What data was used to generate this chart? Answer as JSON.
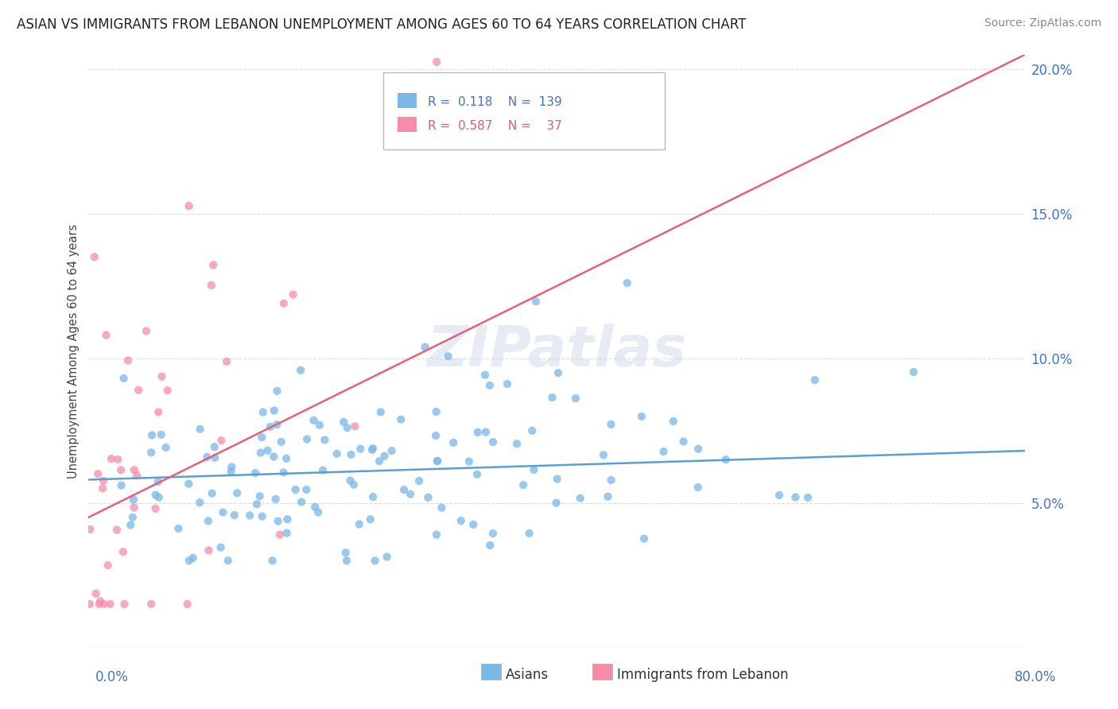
{
  "title": "ASIAN VS IMMIGRANTS FROM LEBANON UNEMPLOYMENT AMONG AGES 60 TO 64 YEARS CORRELATION CHART",
  "source": "Source: ZipAtlas.com",
  "ylabel": "Unemployment Among Ages 60 to 64 years",
  "xmin": 0.0,
  "xmax": 0.8,
  "ymin": 0.0,
  "ymax": 0.205,
  "yticks": [
    0.05,
    0.1,
    0.15,
    0.2
  ],
  "ytick_labels": [
    "5.0%",
    "10.0%",
    "15.0%",
    "20.0%"
  ],
  "blue_color": "#7ab8e8",
  "pink_color": "#f48caa",
  "blue_line_color": "#5a9fd4",
  "pink_line_color": "#e8607a",
  "legend_blue_label": "Asians",
  "legend_pink_label": "Immigrants from Lebanon",
  "R_blue": 0.118,
  "N_blue": 139,
  "R_pink": 0.587,
  "N_pink": 37,
  "watermark": "ZIPatlas",
  "background_color": "#ffffff",
  "grid_color": "#dddddd",
  "title_fontsize": 12,
  "source_fontsize": 10,
  "watermark_fontsize": 52,
  "watermark_color": "#c8d4e8",
  "watermark_alpha": 0.45,
  "blue_line_start_x": 0.0,
  "blue_line_start_y": 0.058,
  "blue_line_end_x": 0.8,
  "blue_line_end_y": 0.068,
  "pink_line_start_x": 0.0,
  "pink_line_start_y": 0.045,
  "pink_line_end_x": 0.8,
  "pink_line_end_y": 0.205
}
